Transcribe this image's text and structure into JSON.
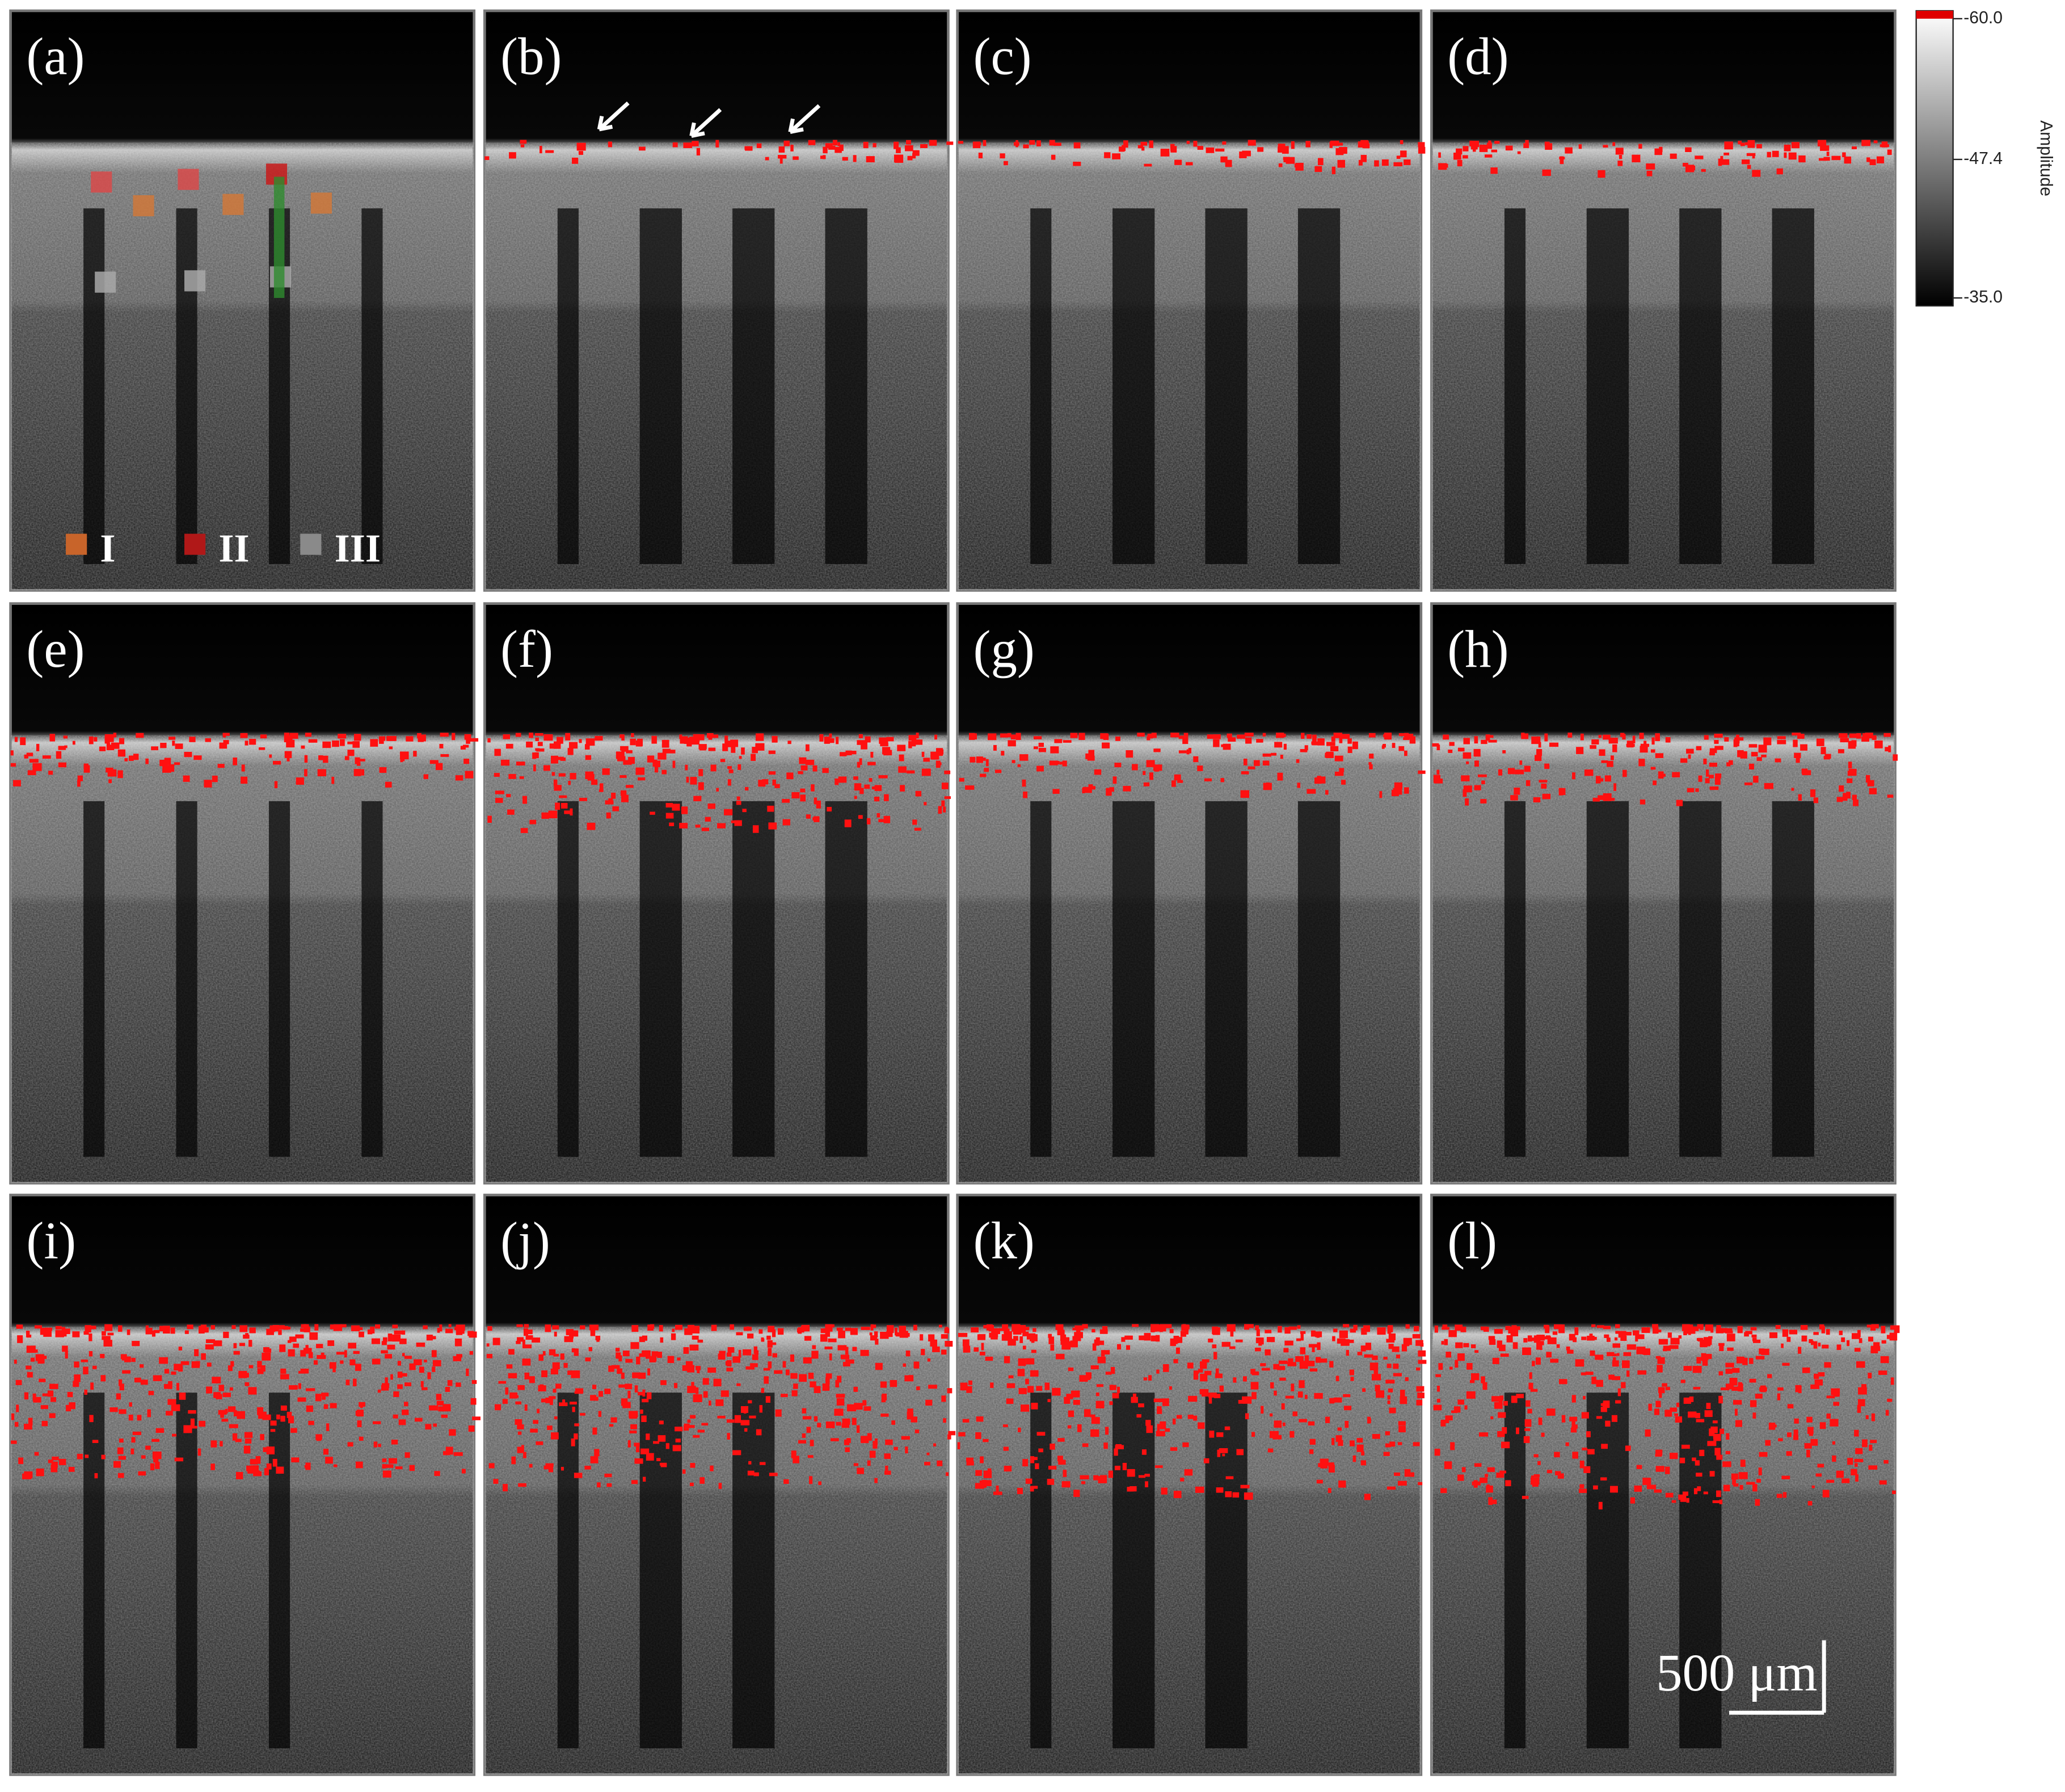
{
  "panels": [
    {
      "label": "(a)"
    },
    {
      "label": "(b)"
    },
    {
      "label": "(c)"
    },
    {
      "label": "(d)"
    },
    {
      "label": "(e)"
    },
    {
      "label": "(f)"
    },
    {
      "label": "(g)"
    },
    {
      "label": "(h)"
    },
    {
      "label": "(i)"
    },
    {
      "label": "(j)"
    },
    {
      "label": "(k)"
    },
    {
      "label": "(l)"
    }
  ],
  "legend": [
    {
      "label": "I",
      "color": "#c8642a"
    },
    {
      "label": "II",
      "color": "#b01818"
    },
    {
      "label": "III",
      "color": "#8a8a8a"
    }
  ],
  "colorbar": {
    "title": "Amplitude",
    "range": [
      -60,
      -35
    ],
    "ticks": [
      {
        "value": -60,
        "label": "-60.0"
      },
      {
        "value": -47.4,
        "label": "-47.4"
      },
      {
        "value": -35,
        "label": "-35.0"
      }
    ]
  },
  "scale_bar": {
    "label": "500 μm"
  }
}
